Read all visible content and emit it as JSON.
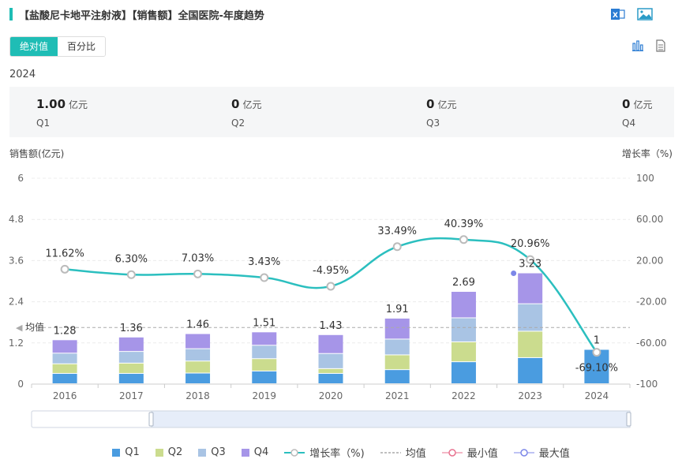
{
  "title": "【盐酸尼卡地平注射液】【销售额】全国医院-年度趋势",
  "toggle": {
    "absolute": "绝对值",
    "percent": "百分比"
  },
  "year": "2024",
  "summary": [
    {
      "value": "1.00",
      "unit": "亿元",
      "quarter": "Q1"
    },
    {
      "value": "0",
      "unit": "亿元",
      "quarter": "Q2"
    },
    {
      "value": "0",
      "unit": "亿元",
      "quarter": "Q3"
    },
    {
      "value": "0",
      "unit": "亿元",
      "quarter": "Q4"
    }
  ],
  "left_axis_title": "销售额(亿元)",
  "right_axis_title": "增长率（%)",
  "colors": {
    "accent": "#1fbdb5",
    "q1": "#4a9ce0",
    "q2": "#cbdc8e",
    "q3": "#a9c4e4",
    "q4": "#a695e8",
    "growth": "#2bbfbf",
    "avg": "#aaaaaa",
    "min": "#e8728f",
    "max": "#7c87e8"
  },
  "chart_data": {
    "type": "bar",
    "categories": [
      "2016",
      "2017",
      "2018",
      "2019",
      "2020",
      "2021",
      "2022",
      "2023",
      "2024"
    ],
    "series": [
      {
        "name": "Q1",
        "values": [
          0.3,
          0.3,
          0.31,
          0.37,
          0.3,
          0.41,
          0.64,
          0.76,
          1.0
        ]
      },
      {
        "name": "Q2",
        "values": [
          0.28,
          0.3,
          0.35,
          0.36,
          0.14,
          0.43,
          0.58,
          0.77,
          0
        ]
      },
      {
        "name": "Q3",
        "values": [
          0.31,
          0.34,
          0.36,
          0.39,
          0.44,
          0.46,
          0.7,
          0.8,
          0
        ]
      },
      {
        "name": "Q4",
        "values": [
          0.39,
          0.42,
          0.44,
          0.39,
          0.55,
          0.61,
          0.77,
          0.9,
          0
        ]
      }
    ],
    "totals": [
      "1.28",
      "1.36",
      "1.46",
      "1.51",
      "1.43",
      "1.91",
      "2.69",
      "3.23",
      "1"
    ],
    "growth": {
      "name": "增长率（%)",
      "values": [
        11.62,
        6.3,
        7.03,
        3.43,
        -4.95,
        33.49,
        40.39,
        20.96,
        -69.1
      ],
      "labels": [
        "11.62%",
        "6.30%",
        "7.03%",
        "3.43%",
        "-4.95%",
        "33.49%",
        "40.39%",
        "20.96%",
        "-69.10%"
      ]
    },
    "average": 1.65,
    "average_label": "均值",
    "ylim_left": [
      0,
      6
    ],
    "yticks_left": [
      "0",
      "1.2",
      "2.4",
      "3.6",
      "4.8",
      "6"
    ],
    "ylim_right": [
      -100,
      100
    ],
    "yticks_right": [
      "-100",
      "-60.00",
      "-20.00",
      "20.00",
      "60.00",
      "100"
    ],
    "legend": [
      "Q1",
      "Q2",
      "Q3",
      "Q4",
      "增长率（%)",
      "均值",
      "最小值",
      "最大值"
    ]
  }
}
